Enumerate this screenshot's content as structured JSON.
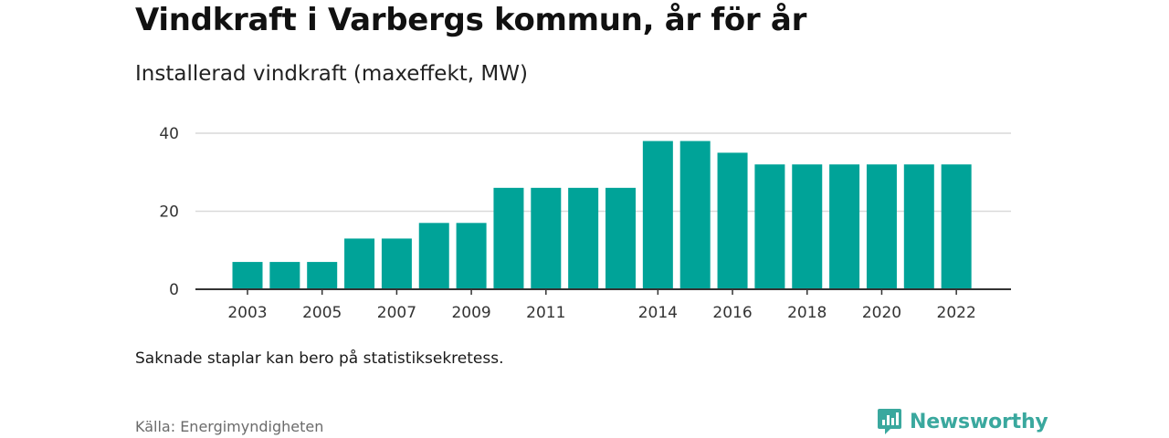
{
  "title": "Vindkraft i Varbergs kommun, år för år",
  "subtitle": "Installerad vindkraft (maxeffekt, MW)",
  "note": "Saknade staplar kan bero på statistiksekretess.",
  "source": "Källa: Energimyndigheten",
  "brand": {
    "name": "Newsworthy",
    "icon": "newsworthy-chart-logo-icon",
    "color": "#3aa89e"
  },
  "colors": {
    "bar": "#00a398",
    "grid": "#d9d9d9",
    "axis": "#333333"
  },
  "chart_data": {
    "type": "bar",
    "categories": [
      "2003",
      "2004",
      "2005",
      "2006",
      "2007",
      "2008",
      "2009",
      "2010",
      "2011",
      "2012",
      "2013",
      "2014",
      "2015",
      "2016",
      "2017",
      "2018",
      "2019",
      "2020",
      "2021",
      "2022"
    ],
    "values": [
      7,
      7,
      7,
      13,
      13,
      17,
      17,
      26,
      26,
      26,
      26,
      38,
      38,
      35,
      32,
      32,
      32,
      32,
      32,
      32
    ],
    "x_tick_labels": [
      "2003",
      "2005",
      "2007",
      "2009",
      "2011",
      "2014",
      "2016",
      "2018",
      "2020",
      "2022"
    ],
    "y_tick_labels": [
      "0",
      "20",
      "40"
    ],
    "ylim": [
      0,
      40
    ],
    "grid": true,
    "legend": "none",
    "xlabel": "",
    "ylabel": ""
  }
}
